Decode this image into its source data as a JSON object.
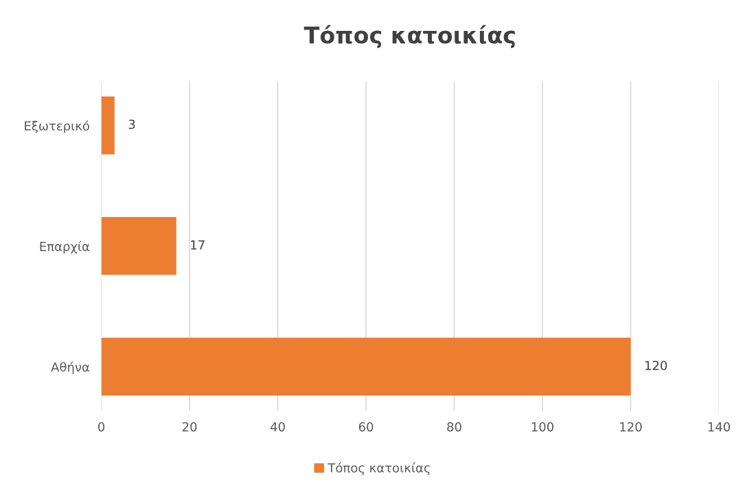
{
  "chart_data": {
    "type": "bar",
    "orientation": "horizontal",
    "title": "Τόπος κατοικίας",
    "categories": [
      "Εξωτερικό",
      "Επαρχία",
      "Αθήνα"
    ],
    "series": [
      {
        "name": "Τόπος κατοικίας",
        "color": "#ed7d31",
        "values": [
          3,
          17,
          120
        ]
      }
    ],
    "xlim": [
      0,
      140
    ],
    "xticks": [
      0,
      20,
      40,
      60,
      80,
      100,
      120,
      140
    ],
    "grid": "x",
    "legend": "bottom",
    "data_labels": true
  }
}
